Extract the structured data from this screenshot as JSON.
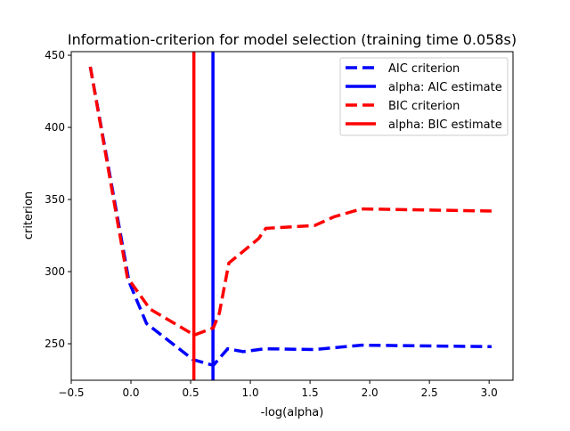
{
  "chart_data": {
    "type": "line",
    "title": "Information-criterion for model selection (training time 0.058s)",
    "xlabel": "-log(alpha)",
    "ylabel": "criterion",
    "xlim": [
      -0.5,
      3.2
    ],
    "ylim": [
      224.7,
      452.5
    ],
    "xticks": [
      -0.5,
      0.0,
      0.5,
      1.0,
      1.5,
      2.0,
      2.5,
      3.0
    ],
    "xtick_labels": [
      "−0.5",
      "0.0",
      "0.5",
      "1.0",
      "1.5",
      "2.0",
      "2.5",
      "3.0"
    ],
    "yticks": [
      250,
      300,
      350,
      400,
      450
    ],
    "ytick_labels": [
      "250",
      "300",
      "350",
      "400",
      "450"
    ],
    "grid": false,
    "legend_position": "top-right",
    "series": [
      {
        "name": "AIC criterion",
        "style": "dashed",
        "color": "#0000ff",
        "x": [
          -0.34,
          -0.015,
          0.13,
          0.52,
          0.69,
          0.81,
          0.94,
          1.12,
          1.54,
          1.93,
          3.02
        ],
        "y": [
          442,
          292.8,
          264,
          239,
          235,
          246.5,
          244.5,
          246.5,
          246,
          249,
          248
        ]
      },
      {
        "name": "alpha: AIC estimate",
        "style": "vline",
        "color": "#0000ff",
        "x": 0.687
      },
      {
        "name": "BIC criterion",
        "style": "dashed",
        "color": "#ff0000",
        "x": [
          -0.34,
          -0.03,
          0.16,
          0.53,
          0.69,
          0.74,
          0.82,
          0.94,
          1.07,
          1.13,
          1.54,
          1.7,
          1.93,
          3.02
        ],
        "y": [
          442,
          296,
          274,
          256,
          261,
          271,
          306,
          314,
          323,
          330,
          332,
          338,
          343.5,
          342
        ]
      },
      {
        "name": "alpha: BIC estimate",
        "style": "vline",
        "color": "#ff0000",
        "x": 0.527
      }
    ]
  }
}
